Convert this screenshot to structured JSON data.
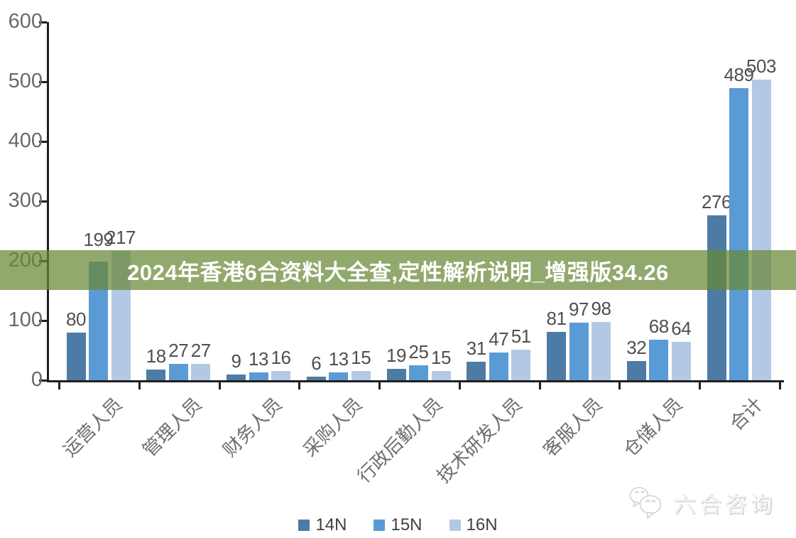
{
  "banner": {
    "text": "2024年香港6合资料大全查,定性解析说明_增强版34.26",
    "background": "#688834",
    "background_opacity": 0.72,
    "text_color": "#ffffff"
  },
  "chart_data": {
    "type": "bar",
    "title": "",
    "xlabel": "",
    "ylabel": "",
    "categories": [
      "运营人员",
      "管理人员",
      "财务人员",
      "采购人员",
      "行政后勤人员",
      "技术研发人员",
      "客服人员",
      "仓储人员",
      "合计"
    ],
    "series": [
      {
        "name": "14N",
        "color": "#4e7ba6",
        "values": [
          80,
          18,
          9,
          6,
          19,
          31,
          81,
          32,
          276
        ]
      },
      {
        "name": "15N",
        "color": "#5b9bd5",
        "values": [
          199,
          27,
          13,
          13,
          25,
          47,
          97,
          68,
          489
        ]
      },
      {
        "name": "16N",
        "color": "#b3c8e4",
        "values": [
          217,
          27,
          16,
          15,
          15,
          51,
          98,
          64,
          503
        ]
      }
    ],
    "ylim": [
      0,
      600
    ],
    "yticks": [
      0,
      100,
      200,
      300,
      400,
      500,
      600
    ],
    "grid": false,
    "legend_position": "bottom",
    "value_labels_shown": true
  },
  "watermark": {
    "text": "六合咨询",
    "icon": "wechat-chat-bubbles-icon"
  },
  "colors": {
    "axis": "#1f1f1f",
    "tick_label": "#696969",
    "value_label": "#4f4f4f",
    "category_label": "#6e6e6e",
    "legend_label": "#3f3f3f"
  }
}
